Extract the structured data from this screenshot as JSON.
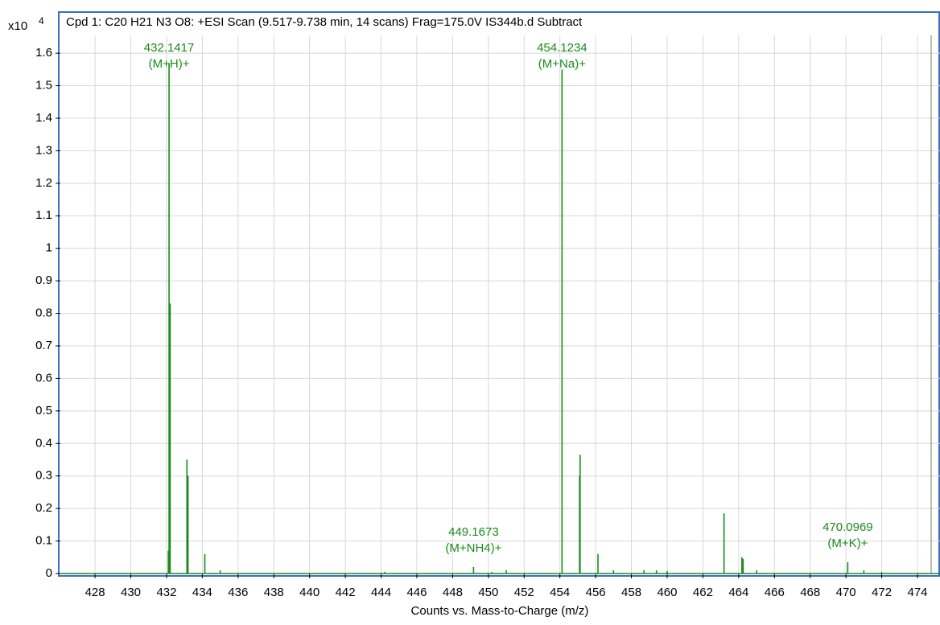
{
  "chart_data": {
    "type": "spectrum",
    "title": "Cpd 1: C20 H21 N3 O8: +ESI Scan (9.517-9.738 min, 14 scans) Frag=175.0V IS344b.d  Subtract",
    "y_multiplier": "x10",
    "y_exponent": "4",
    "xlabel": "Counts vs. Mass-to-Charge (m/z)",
    "color": "#1a8a1a",
    "grid": true,
    "xlim": [
      426.06,
      475.26
    ],
    "ylim": [
      0,
      1.724
    ],
    "xticks": [
      428,
      430,
      432,
      434,
      436,
      438,
      440,
      442,
      444,
      446,
      448,
      450,
      452,
      454,
      456,
      458,
      460,
      462,
      464,
      466,
      468,
      470,
      472,
      474
    ],
    "yticks": [
      0,
      0.1,
      0.2,
      0.3,
      0.4,
      0.5,
      0.6,
      0.7,
      0.8,
      0.9,
      1,
      1.1,
      1.2,
      1.3,
      1.4,
      1.5,
      1.6
    ],
    "x": [
      432.1,
      432.14,
      432.2,
      433.14,
      433.2,
      434.14,
      435.0,
      444.2,
      449.17,
      450.2,
      451.0,
      454.12,
      455.1,
      455.13,
      456.13,
      457.0,
      458.7,
      459.4,
      460.0,
      463.18,
      464.18,
      464.25,
      465.0,
      470.1,
      471.0,
      472.0
    ],
    "values": [
      0.07,
      1.57,
      0.83,
      0.35,
      0.3,
      0.06,
      0.01,
      0.005,
      0.02,
      0.005,
      0.01,
      1.55,
      0.3,
      0.365,
      0.06,
      0.01,
      0.01,
      0.01,
      0.008,
      0.185,
      0.05,
      0.045,
      0.01,
      0.035,
      0.01,
      0.005
    ],
    "annotations": [
      {
        "label": "432.1417",
        "adduct": "(M+H)+"
      },
      {
        "label": "454.1234",
        "adduct": "(M+Na)+"
      },
      {
        "label": "449.1673",
        "adduct": "(M+NH4)+"
      },
      {
        "label": "470.0969",
        "adduct": "(M+K)+"
      }
    ]
  }
}
